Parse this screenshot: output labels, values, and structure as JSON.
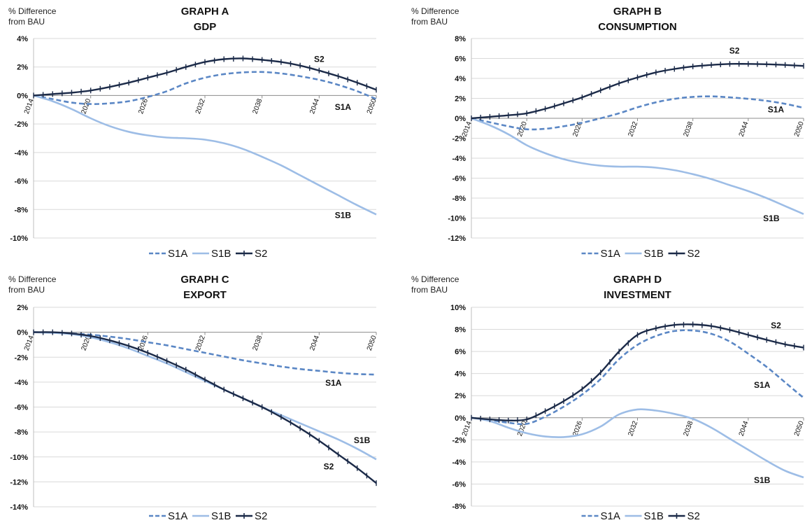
{
  "chart_data": [
    {
      "type": "line",
      "title": "GRAPH A",
      "subtitle": "GDP",
      "ylabel_line1": "% Difference",
      "ylabel_line2": "from BAU",
      "yticks": [
        4,
        2,
        0,
        -2,
        -4,
        -6,
        -8,
        -10
      ],
      "yticklabels": [
        "4%",
        "2%",
        "0%",
        "-2%",
        "-4%",
        "-6%",
        "-8%",
        "-10%"
      ],
      "ylim": [
        -10,
        4
      ],
      "xlim": [
        2014,
        2050
      ],
      "xticks": [
        "2014",
        "2020",
        "2026",
        "2032",
        "2038",
        "2044",
        "2050"
      ],
      "grid": true,
      "legend": "bottom",
      "series": [
        {
          "name": "S1A",
          "color": "#5b87c5",
          "dash": true,
          "markers": false,
          "x": [
            2014,
            2016,
            2018,
            2020,
            2022,
            2024,
            2026,
            2028,
            2030,
            2032,
            2034,
            2036,
            2038,
            2040,
            2042,
            2044,
            2046,
            2048,
            2050
          ],
          "values": [
            0,
            -0.25,
            -0.5,
            -0.6,
            -0.55,
            -0.4,
            -0.1,
            0.3,
            0.85,
            1.25,
            1.5,
            1.62,
            1.65,
            1.55,
            1.35,
            1.1,
            0.75,
            0.3,
            -0.25
          ]
        },
        {
          "name": "S1B",
          "color": "#9dbde6",
          "dash": false,
          "markers": false,
          "x": [
            2014,
            2016,
            2018,
            2020,
            2022,
            2024,
            2026,
            2028,
            2030,
            2032,
            2034,
            2036,
            2038,
            2040,
            2042,
            2044,
            2046,
            2048,
            2050
          ],
          "values": [
            0,
            -0.4,
            -0.95,
            -1.6,
            -2.15,
            -2.55,
            -2.8,
            -2.95,
            -3.0,
            -3.1,
            -3.35,
            -3.75,
            -4.3,
            -4.9,
            -5.6,
            -6.3,
            -7.0,
            -7.7,
            -8.35
          ]
        },
        {
          "name": "S2",
          "color": "#1b2a48",
          "dash": false,
          "markers": true,
          "x": [
            2014,
            2016,
            2018,
            2020,
            2022,
            2024,
            2026,
            2028,
            2030,
            2032,
            2034,
            2036,
            2038,
            2040,
            2042,
            2044,
            2046,
            2048,
            2050
          ],
          "values": [
            0,
            0.1,
            0.2,
            0.35,
            0.6,
            0.9,
            1.25,
            1.6,
            2.0,
            2.35,
            2.55,
            2.6,
            2.5,
            2.35,
            2.1,
            1.75,
            1.35,
            0.9,
            0.4
          ]
        }
      ],
      "annotations": [
        {
          "text": "S2",
          "x": 2044,
          "y": 2.35
        },
        {
          "text": "S1A",
          "x": 2046.5,
          "y": -1.0
        },
        {
          "text": "S1B",
          "x": 2046.5,
          "y": -8.6
        }
      ]
    },
    {
      "type": "line",
      "title": "GRAPH B",
      "subtitle": "CONSUMPTION",
      "ylabel_line1": "% Difference",
      "ylabel_line2": "from BAU",
      "yticks": [
        8,
        6,
        4,
        2,
        0,
        -2,
        -4,
        -6,
        -8,
        -10,
        -12
      ],
      "yticklabels": [
        "8%",
        "6%",
        "4%",
        "2%",
        "0%",
        "-2%",
        "-4%",
        "-6%",
        "-8%",
        "-10%",
        "-12%"
      ],
      "ylim": [
        -12,
        8
      ],
      "xlim": [
        2014,
        2050
      ],
      "xticks": [
        "2014",
        "2020",
        "2026",
        "2032",
        "2038",
        "2044",
        "2050"
      ],
      "grid": true,
      "legend": "bottom",
      "series": [
        {
          "name": "S1A",
          "color": "#5b87c5",
          "dash": true,
          "markers": false,
          "x": [
            2014,
            2016,
            2018,
            2020,
            2022,
            2024,
            2026,
            2028,
            2030,
            2032,
            2034,
            2036,
            2038,
            2040,
            2042,
            2044,
            2046,
            2048,
            2050
          ],
          "values": [
            0,
            -0.4,
            -0.8,
            -1.1,
            -1.05,
            -0.8,
            -0.45,
            0.0,
            0.5,
            1.1,
            1.6,
            1.95,
            2.15,
            2.2,
            2.1,
            1.95,
            1.75,
            1.45,
            1.05
          ]
        },
        {
          "name": "S1B",
          "color": "#9dbde6",
          "dash": false,
          "markers": false,
          "x": [
            2014,
            2016,
            2018,
            2020,
            2022,
            2024,
            2026,
            2028,
            2030,
            2032,
            2034,
            2036,
            2038,
            2040,
            2042,
            2044,
            2046,
            2048,
            2050
          ],
          "values": [
            0,
            -0.7,
            -1.6,
            -2.7,
            -3.5,
            -4.1,
            -4.5,
            -4.75,
            -4.85,
            -4.85,
            -4.95,
            -5.2,
            -5.6,
            -6.1,
            -6.7,
            -7.3,
            -8.0,
            -8.8,
            -9.6
          ]
        },
        {
          "name": "S2",
          "color": "#1b2a48",
          "dash": false,
          "markers": true,
          "x": [
            2014,
            2016,
            2018,
            2020,
            2022,
            2024,
            2026,
            2028,
            2030,
            2032,
            2034,
            2036,
            2038,
            2040,
            2042,
            2044,
            2046,
            2048,
            2050
          ],
          "values": [
            0,
            0.15,
            0.3,
            0.5,
            0.95,
            1.5,
            2.1,
            2.8,
            3.5,
            4.1,
            4.6,
            4.95,
            5.2,
            5.35,
            5.45,
            5.45,
            5.42,
            5.35,
            5.25
          ]
        }
      ],
      "annotations": [
        {
          "text": "S2",
          "x": 2042.5,
          "y": 6.5
        },
        {
          "text": "S1A",
          "x": 2047,
          "y": 0.6
        },
        {
          "text": "S1B",
          "x": 2046.5,
          "y": -10.3
        }
      ]
    },
    {
      "type": "line",
      "title": "GRAPH C",
      "subtitle": "EXPORT",
      "ylabel_line1": "% Difference",
      "ylabel_line2": "from BAU",
      "yticks": [
        2,
        0,
        -2,
        -4,
        -6,
        -8,
        -10,
        -12,
        -14
      ],
      "yticklabels": [
        "2%",
        "0%",
        "-2%",
        "-4%",
        "-6%",
        "-8%",
        "-10%",
        "-12%",
        "-14%"
      ],
      "ylim": [
        -14,
        2
      ],
      "xlim": [
        2014,
        2050
      ],
      "xticks": [
        "2014",
        "2020",
        "2026",
        "2032",
        "2038",
        "2044",
        "2050"
      ],
      "grid": true,
      "legend": "bottom",
      "series": [
        {
          "name": "S1A",
          "color": "#5b87c5",
          "dash": true,
          "markers": false,
          "x": [
            2014,
            2016,
            2018,
            2020,
            2022,
            2024,
            2026,
            2028,
            2030,
            2032,
            2034,
            2036,
            2038,
            2040,
            2042,
            2044,
            2046,
            2048,
            2050
          ],
          "values": [
            0,
            -0.03,
            -0.1,
            -0.2,
            -0.35,
            -0.55,
            -0.8,
            -1.05,
            -1.35,
            -1.65,
            -1.95,
            -2.25,
            -2.5,
            -2.75,
            -2.95,
            -3.1,
            -3.25,
            -3.35,
            -3.4
          ]
        },
        {
          "name": "S1B",
          "color": "#9dbde6",
          "dash": false,
          "markers": false,
          "x": [
            2014,
            2016,
            2018,
            2020,
            2022,
            2024,
            2026,
            2028,
            2030,
            2032,
            2034,
            2036,
            2038,
            2040,
            2042,
            2044,
            2046,
            2048,
            2050
          ],
          "values": [
            0,
            -0.05,
            -0.15,
            -0.4,
            -0.8,
            -1.3,
            -1.9,
            -2.5,
            -3.2,
            -3.9,
            -4.6,
            -5.3,
            -6.0,
            -6.65,
            -7.3,
            -7.95,
            -8.6,
            -9.35,
            -10.2
          ]
        },
        {
          "name": "S2",
          "color": "#1b2a48",
          "dash": false,
          "markers": true,
          "x": [
            2014,
            2016,
            2018,
            2020,
            2022,
            2024,
            2026,
            2028,
            2030,
            2032,
            2034,
            2036,
            2038,
            2040,
            2042,
            2044,
            2046,
            2048,
            2050
          ],
          "values": [
            0,
            0,
            -0.1,
            -0.3,
            -0.65,
            -1.1,
            -1.65,
            -2.3,
            -3.0,
            -3.8,
            -4.6,
            -5.3,
            -6.0,
            -6.8,
            -7.7,
            -8.7,
            -9.8,
            -10.9,
            -12.1
          ]
        }
      ],
      "annotations": [
        {
          "text": "S1A",
          "x": 2045.5,
          "y": -4.3
        },
        {
          "text": "S1B",
          "x": 2048.5,
          "y": -8.9
        },
        {
          "text": "S2",
          "x": 2045,
          "y": -11.0
        }
      ]
    },
    {
      "type": "line",
      "title": "GRAPH D",
      "subtitle": "INVESTMENT",
      "ylabel_line1": "% Difference",
      "ylabel_line2": "from BAU",
      "yticks": [
        10,
        8,
        6,
        4,
        2,
        0,
        -2,
        -4,
        -6,
        -8
      ],
      "yticklabels": [
        "10%",
        "8%",
        "6%",
        "4%",
        "2%",
        "0%",
        "-2%",
        "-4%",
        "-6%",
        "-8%"
      ],
      "ylim": [
        -8,
        10
      ],
      "xlim": [
        2014,
        2050
      ],
      "xticks": [
        "2014",
        "2020",
        "2026",
        "2032",
        "2038",
        "2044",
        "2050"
      ],
      "grid": true,
      "legend": "bottom",
      "series": [
        {
          "name": "S1A",
          "color": "#5b87c5",
          "dash": true,
          "markers": false,
          "x": [
            2014,
            2016,
            2018,
            2020,
            2022,
            2024,
            2026,
            2028,
            2030,
            2032,
            2034,
            2036,
            2038,
            2040,
            2042,
            2044,
            2046,
            2048,
            2050
          ],
          "values": [
            0,
            -0.2,
            -0.45,
            -0.55,
            0.1,
            1.0,
            2.1,
            3.5,
            5.3,
            6.6,
            7.4,
            7.85,
            7.9,
            7.6,
            6.9,
            5.8,
            4.6,
            3.2,
            1.8
          ]
        },
        {
          "name": "S1B",
          "color": "#9dbde6",
          "dash": false,
          "markers": false,
          "x": [
            2014,
            2016,
            2018,
            2020,
            2022,
            2024,
            2026,
            2028,
            2030,
            2032,
            2034,
            2036,
            2038,
            2040,
            2042,
            2044,
            2046,
            2048,
            2050
          ],
          "values": [
            0,
            -0.3,
            -0.9,
            -1.4,
            -1.7,
            -1.75,
            -1.5,
            -0.8,
            0.3,
            0.75,
            0.65,
            0.35,
            -0.1,
            -0.9,
            -1.9,
            -2.9,
            -3.9,
            -4.8,
            -5.4
          ]
        },
        {
          "name": "S2",
          "color": "#1b2a48",
          "dash": false,
          "markers": true,
          "x": [
            2014,
            2016,
            2018,
            2020,
            2022,
            2024,
            2026,
            2028,
            2030,
            2032,
            2034,
            2036,
            2038,
            2040,
            2042,
            2044,
            2046,
            2048,
            2050
          ],
          "values": [
            0,
            -0.15,
            -0.25,
            -0.15,
            0.6,
            1.5,
            2.6,
            4.1,
            6.0,
            7.5,
            8.1,
            8.4,
            8.45,
            8.3,
            7.95,
            7.5,
            7.05,
            6.65,
            6.35
          ]
        }
      ],
      "annotations": [
        {
          "text": "S2",
          "x": 2047,
          "y": 8.1
        },
        {
          "text": "S1A",
          "x": 2045.5,
          "y": 2.7
        },
        {
          "text": "S1B",
          "x": 2045.5,
          "y": -5.9
        }
      ]
    }
  ]
}
